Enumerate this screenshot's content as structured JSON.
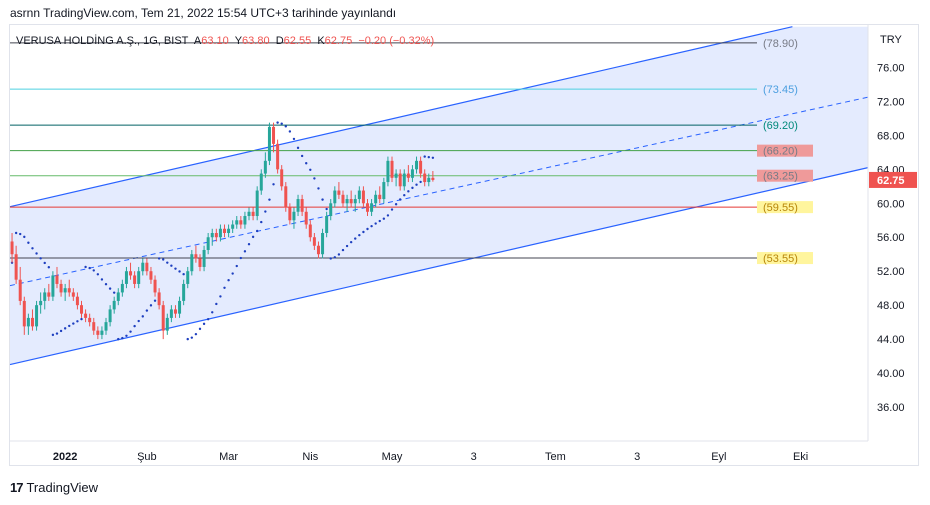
{
  "header": {
    "published": "asrnn TradingView.com, Tem 21, 2022 15:54 UTC+3 tarihinde yayınlandı"
  },
  "symbol": {
    "name": "VERUSA HOLDİNG A.Ş., 1G, BIST",
    "open_label": "A",
    "open": "63.10",
    "high_label": "Y",
    "high": "63.80",
    "low_label": "D",
    "low": "62.55",
    "close_label": "K",
    "close": "62.75",
    "change": "−0.20 (−0.32%)"
  },
  "footer": {
    "logo_text": "TradingView",
    "logo_mark": "17"
  },
  "colors": {
    "up": "#26a69a",
    "down": "#ef5350",
    "channel": "#2962ff",
    "channel_fill": "#dbe4fd",
    "psar": "#1e3fbf"
  },
  "chart_data": {
    "type": "candlestick",
    "currency": "TRY",
    "ylim": [
      32,
      81
    ],
    "y_ticks": [
      36,
      40,
      44,
      48,
      52,
      56,
      60,
      64,
      68,
      72,
      76
    ],
    "y_tick_labels": [
      "36.00",
      "40.00",
      "44.00",
      "48.00",
      "52.00",
      "56.00",
      "60.00",
      "64.00",
      "68.00",
      "72.00",
      "76.00"
    ],
    "x_labels": [
      {
        "label": "2022",
        "bar": 13
      },
      {
        "label": "Şub",
        "bar": 33
      },
      {
        "label": "Mar",
        "bar": 53
      },
      {
        "label": "Nis",
        "bar": 73
      },
      {
        "label": "May",
        "bar": 93
      },
      {
        "label": "3",
        "bar": 113
      },
      {
        "label": "Tem",
        "bar": 133
      },
      {
        "label": "3",
        "bar": 153
      },
      {
        "label": "Eyl",
        "bar": 173
      },
      {
        "label": "Eki",
        "bar": 193
      }
    ],
    "total_bars": 210,
    "last_price": "62.75",
    "levels": [
      {
        "value": 78.9,
        "label": "(78.90)",
        "line_color": "#434651",
        "tag_bg": "",
        "tag_color": "#787b86"
      },
      {
        "value": 73.45,
        "label": "(73.45)",
        "line_color": "#4dd0e1",
        "tag_bg": "",
        "tag_color": "#4c9fe0"
      },
      {
        "value": 69.2,
        "label": "(69.20)",
        "line_color": "#006064",
        "tag_bg": "",
        "tag_color": "#00897b"
      },
      {
        "value": 66.2,
        "label": "(66.20)",
        "line_color": "#43a047",
        "tag_bg": "#ef9a9a",
        "tag_color": "#787b86"
      },
      {
        "value": 63.25,
        "label": "(63.25)",
        "line_color": "#66bb6a",
        "tag_bg": "#ef9a9a",
        "tag_color": "#787b86"
      },
      {
        "value": 59.55,
        "label": "(59.55)",
        "line_color": "#e53935",
        "tag_bg": "#fff59d",
        "tag_color": "#b8860b"
      },
      {
        "value": 53.55,
        "label": "(53.55)",
        "line_color": "#434651",
        "tag_bg": "#fff59d",
        "tag_color": "#b8860b"
      }
    ],
    "channel": {
      "upper": [
        {
          "bar": 0,
          "value": 59.6
        },
        {
          "bar": 191,
          "value": 80.8
        }
      ],
      "lower": [
        {
          "bar": 0,
          "value": 41.0
        },
        {
          "bar": 210,
          "value": 64.2
        }
      ],
      "mid": [
        {
          "bar": 0,
          "value": 50.3
        },
        {
          "bar": 210,
          "value": 72.5
        }
      ]
    },
    "candles": [
      [
        55.5,
        56.5,
        53.0,
        54.0
      ],
      [
        54.0,
        55.0,
        50.5,
        51.0
      ],
      [
        51.0,
        52.5,
        48.0,
        48.5
      ],
      [
        48.5,
        49.0,
        44.5,
        45.5
      ],
      [
        45.5,
        47.0,
        44.5,
        46.5
      ],
      [
        46.5,
        47.5,
        45.0,
        45.5
      ],
      [
        45.5,
        48.5,
        45.0,
        48.0
      ],
      [
        48.0,
        49.5,
        47.0,
        48.5
      ],
      [
        48.5,
        50.0,
        47.5,
        49.5
      ],
      [
        49.5,
        50.5,
        48.5,
        49.0
      ],
      [
        49.0,
        52.0,
        48.5,
        51.5
      ],
      [
        51.5,
        52.5,
        50.0,
        50.5
      ],
      [
        50.5,
        51.0,
        49.0,
        49.5
      ],
      [
        49.5,
        50.5,
        48.5,
        50.0
      ],
      [
        50.0,
        51.0,
        49.0,
        49.5
      ],
      [
        49.5,
        50.0,
        48.5,
        49.0
      ],
      [
        49.0,
        49.5,
        47.5,
        48.0
      ],
      [
        48.0,
        48.5,
        46.5,
        47.0
      ],
      [
        47.0,
        47.5,
        46.0,
        46.5
      ],
      [
        46.5,
        47.0,
        45.5,
        46.0
      ],
      [
        46.0,
        46.5,
        44.5,
        45.0
      ],
      [
        45.0,
        45.5,
        44.0,
        44.5
      ],
      [
        44.5,
        45.5,
        44.0,
        45.0
      ],
      [
        45.0,
        46.5,
        44.5,
        46.0
      ],
      [
        46.0,
        48.0,
        45.5,
        47.5
      ],
      [
        47.5,
        49.0,
        47.0,
        48.5
      ],
      [
        48.5,
        50.0,
        48.0,
        49.5
      ],
      [
        49.5,
        51.0,
        49.0,
        50.5
      ],
      [
        50.5,
        52.5,
        50.0,
        52.0
      ],
      [
        52.0,
        53.0,
        51.0,
        51.5
      ],
      [
        51.5,
        52.0,
        50.0,
        50.5
      ],
      [
        50.5,
        52.5,
        50.0,
        52.0
      ],
      [
        52.0,
        53.5,
        51.5,
        53.0
      ],
      [
        53.0,
        53.5,
        51.5,
        52.0
      ],
      [
        52.0,
        52.5,
        50.5,
        51.0
      ],
      [
        51.0,
        51.5,
        49.0,
        49.5
      ],
      [
        49.5,
        50.0,
        47.5,
        48.0
      ],
      [
        48.0,
        48.5,
        44.0,
        45.0
      ],
      [
        45.0,
        47.0,
        44.5,
        46.5
      ],
      [
        46.5,
        48.0,
        46.0,
        47.5
      ],
      [
        47.5,
        48.0,
        46.5,
        47.0
      ],
      [
        47.0,
        49.0,
        46.5,
        48.5
      ],
      [
        48.5,
        51.0,
        48.0,
        50.5
      ],
      [
        50.5,
        52.5,
        50.0,
        52.0
      ],
      [
        52.0,
        54.5,
        51.5,
        54.0
      ],
      [
        54.0,
        55.0,
        53.0,
        53.5
      ],
      [
        53.5,
        54.0,
        52.0,
        52.5
      ],
      [
        52.5,
        55.0,
        52.0,
        54.5
      ],
      [
        54.5,
        56.5,
        54.0,
        56.0
      ],
      [
        56.0,
        57.0,
        55.0,
        56.5
      ],
      [
        56.5,
        57.0,
        55.5,
        56.0
      ],
      [
        56.0,
        57.5,
        55.5,
        57.0
      ],
      [
        57.0,
        57.5,
        56.0,
        56.5
      ],
      [
        56.5,
        57.5,
        56.0,
        57.0
      ],
      [
        57.0,
        58.0,
        56.5,
        57.5
      ],
      [
        57.5,
        58.5,
        57.0,
        58.0
      ],
      [
        58.0,
        58.5,
        57.0,
        57.5
      ],
      [
        57.5,
        59.0,
        57.0,
        58.5
      ],
      [
        58.5,
        59.5,
        58.0,
        59.0
      ],
      [
        59.0,
        59.5,
        58.0,
        58.5
      ],
      [
        58.5,
        62.0,
        58.0,
        61.5
      ],
      [
        61.5,
        64.0,
        61.0,
        63.5
      ],
      [
        63.5,
        66.0,
        63.0,
        65.0
      ],
      [
        65.0,
        69.5,
        64.5,
        69.0
      ],
      [
        69.0,
        69.5,
        66.0,
        67.0
      ],
      [
        67.0,
        67.5,
        63.5,
        64.0
      ],
      [
        64.0,
        64.5,
        61.5,
        62.0
      ],
      [
        62.0,
        62.5,
        59.0,
        59.5
      ],
      [
        59.5,
        60.0,
        57.5,
        58.0
      ],
      [
        58.0,
        59.5,
        57.0,
        59.0
      ],
      [
        59.0,
        61.0,
        58.5,
        60.5
      ],
      [
        60.5,
        61.0,
        58.5,
        59.0
      ],
      [
        59.0,
        59.5,
        57.0,
        57.5
      ],
      [
        57.5,
        58.0,
        55.5,
        56.0
      ],
      [
        56.0,
        56.5,
        54.5,
        55.0
      ],
      [
        55.0,
        55.5,
        53.5,
        54.0
      ],
      [
        54.0,
        57.0,
        53.5,
        56.5
      ],
      [
        56.5,
        59.0,
        56.0,
        58.5
      ],
      [
        58.5,
        60.5,
        58.0,
        60.0
      ],
      [
        60.0,
        62.0,
        59.5,
        61.5
      ],
      [
        61.5,
        62.5,
        60.5,
        61.0
      ],
      [
        61.0,
        61.5,
        59.5,
        60.0
      ],
      [
        60.0,
        61.0,
        59.0,
        60.5
      ],
      [
        60.5,
        61.5,
        59.5,
        60.0
      ],
      [
        60.0,
        61.0,
        59.0,
        60.5
      ],
      [
        60.5,
        62.0,
        60.0,
        61.5
      ],
      [
        61.5,
        62.0,
        59.5,
        60.0
      ],
      [
        60.0,
        60.5,
        58.5,
        59.0
      ],
      [
        59.0,
        60.5,
        58.5,
        60.0
      ],
      [
        60.0,
        61.5,
        59.5,
        61.0
      ],
      [
        61.0,
        62.0,
        60.0,
        60.5
      ],
      [
        60.5,
        63.0,
        60.0,
        62.5
      ],
      [
        62.5,
        65.5,
        62.0,
        65.0
      ],
      [
        65.0,
        65.5,
        62.5,
        63.0
      ],
      [
        63.0,
        64.0,
        62.0,
        63.5
      ],
      [
        63.5,
        64.0,
        61.5,
        62.0
      ],
      [
        62.0,
        64.0,
        61.5,
        63.5
      ],
      [
        63.5,
        64.5,
        62.5,
        63.0
      ],
      [
        63.0,
        64.5,
        62.5,
        64.0
      ],
      [
        64.0,
        65.5,
        63.5,
        65.0
      ],
      [
        65.0,
        65.5,
        63.0,
        63.5
      ],
      [
        63.5,
        64.0,
        62.0,
        62.5
      ],
      [
        62.5,
        63.5,
        62.0,
        63.0
      ],
      [
        63.0,
        63.8,
        62.55,
        62.75
      ]
    ]
  }
}
